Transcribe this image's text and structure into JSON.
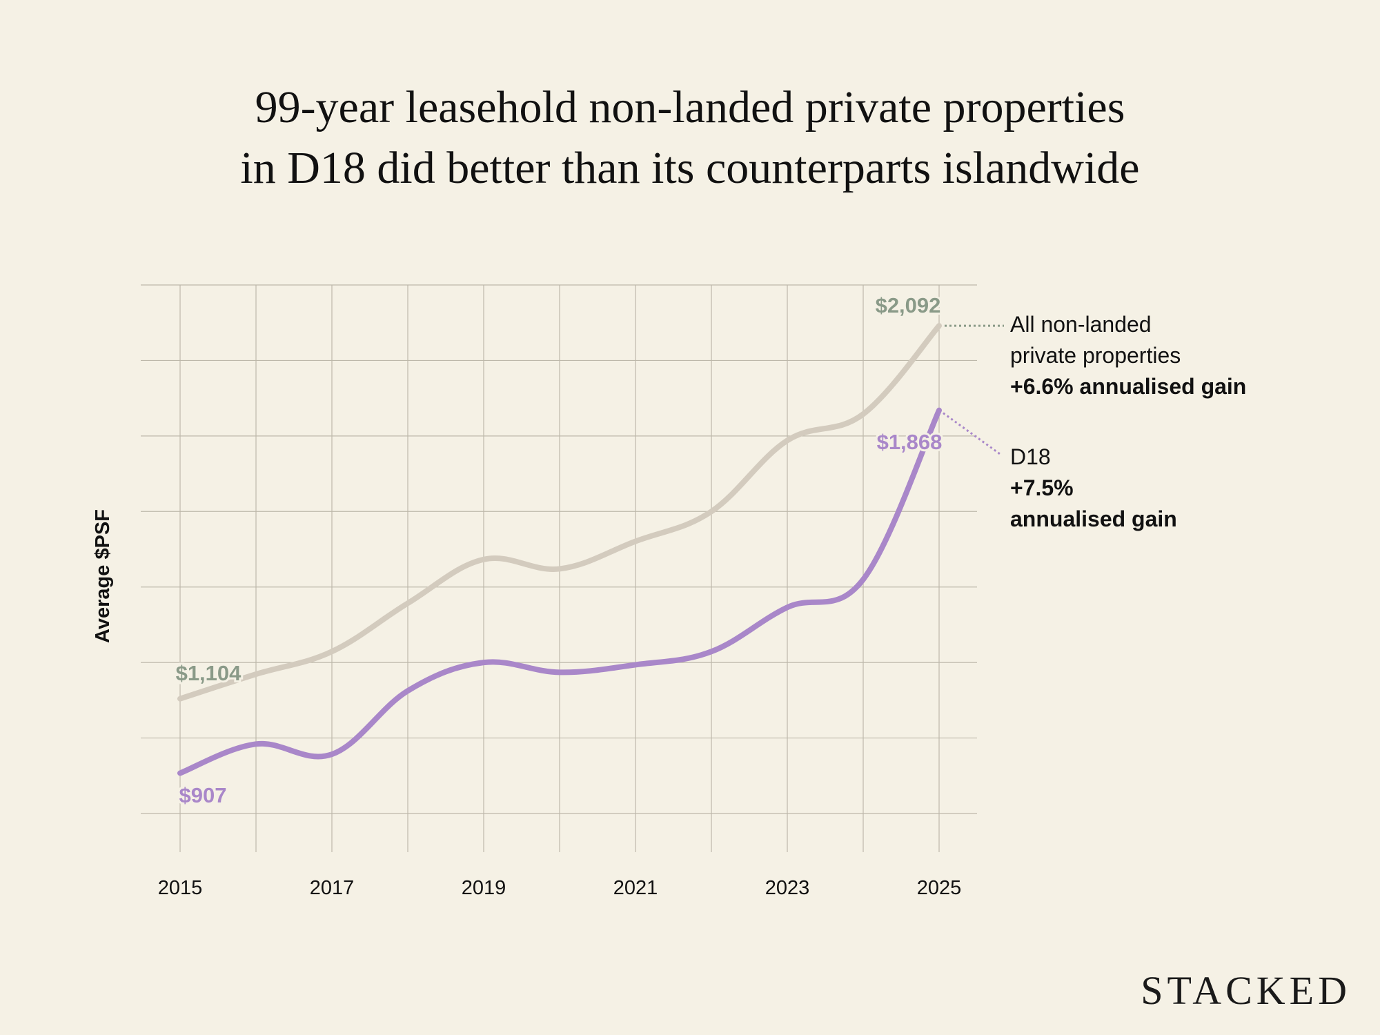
{
  "title": {
    "line1": "99-year leasehold non-landed private properties",
    "line2": "in D18 did better than its counterparts islandwide"
  },
  "logo": "STACKED",
  "chart_data": {
    "type": "line",
    "ylabel": "Average $PSF",
    "xlabel": "",
    "x": [
      2015,
      2016,
      2017,
      2018,
      2019,
      2020,
      2021,
      2022,
      2023,
      2024,
      2025
    ],
    "x_tick_labels": [
      "2015",
      "2017",
      "2019",
      "2021",
      "2023",
      "2025"
    ],
    "ylim": [
      700,
      2200
    ],
    "y_gridlines": [
      800,
      1000,
      1200,
      1400,
      1600,
      1800,
      2000,
      2200
    ],
    "y_tick_labels_shown": false,
    "grid": true,
    "series": [
      {
        "name": "All non-landed private properties",
        "color": "#d3cbbe",
        "label_color": "#8a9a88",
        "values": [
          1104,
          1169,
          1229,
          1357,
          1473,
          1448,
          1521,
          1600,
          1788,
          1858,
          2092
        ],
        "start_label": "$1,104",
        "end_label": "$2,092",
        "annotation": [
          "All non-landed",
          "private properties"
        ],
        "annotation_bold": [
          "+6.6% annualised gain"
        ]
      },
      {
        "name": "D18",
        "color": "#a987c9",
        "label_color": "#a987c9",
        "values": [
          907,
          984,
          957,
          1125,
          1200,
          1174,
          1194,
          1229,
          1346,
          1420,
          1868
        ],
        "start_label": "$907",
        "end_label": "$1,868",
        "annotation": [
          "D18"
        ],
        "annotation_bold": [
          "+7.5%",
          "annualised gain"
        ]
      }
    ]
  }
}
